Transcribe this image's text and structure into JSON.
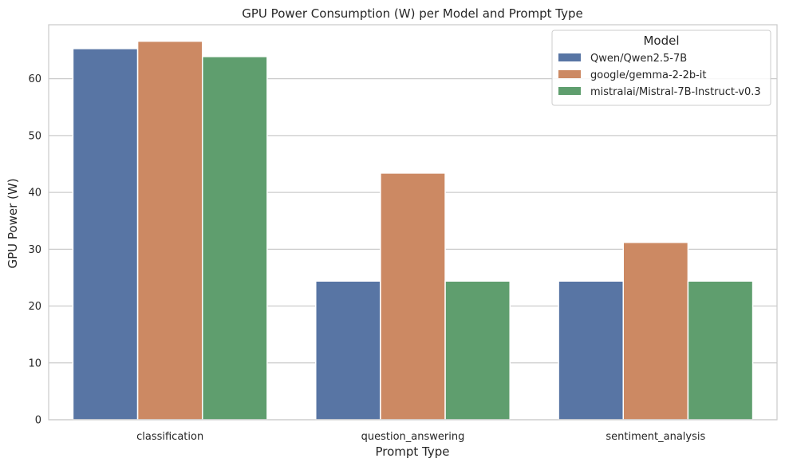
{
  "chart_data": {
    "type": "bar",
    "title": "GPU Power Consumption (W) per Model and Prompt Type",
    "xlabel": "Prompt Type",
    "ylabel": "GPU Power (W)",
    "categories": [
      "classification",
      "question_answering",
      "sentiment_analysis"
    ],
    "series": [
      {
        "name": "Qwen/Qwen2.5-7B",
        "color": "#5875a4",
        "values": [
          65.3,
          24.4,
          24.4
        ]
      },
      {
        "name": "google/gemma-2-2b-it",
        "color": "#cc8963",
        "values": [
          66.6,
          43.4,
          31.2
        ]
      },
      {
        "name": "mistralai/Mistral-7B-Instruct-v0.3",
        "color": "#5f9e6e",
        "values": [
          63.9,
          24.4,
          24.4
        ]
      }
    ],
    "ylim": [
      0,
      69.5
    ],
    "yticks": [
      0,
      10,
      20,
      30,
      40,
      50,
      60
    ],
    "grid": "horizontal",
    "legend": {
      "title": "Model",
      "placement": "top-right"
    }
  }
}
